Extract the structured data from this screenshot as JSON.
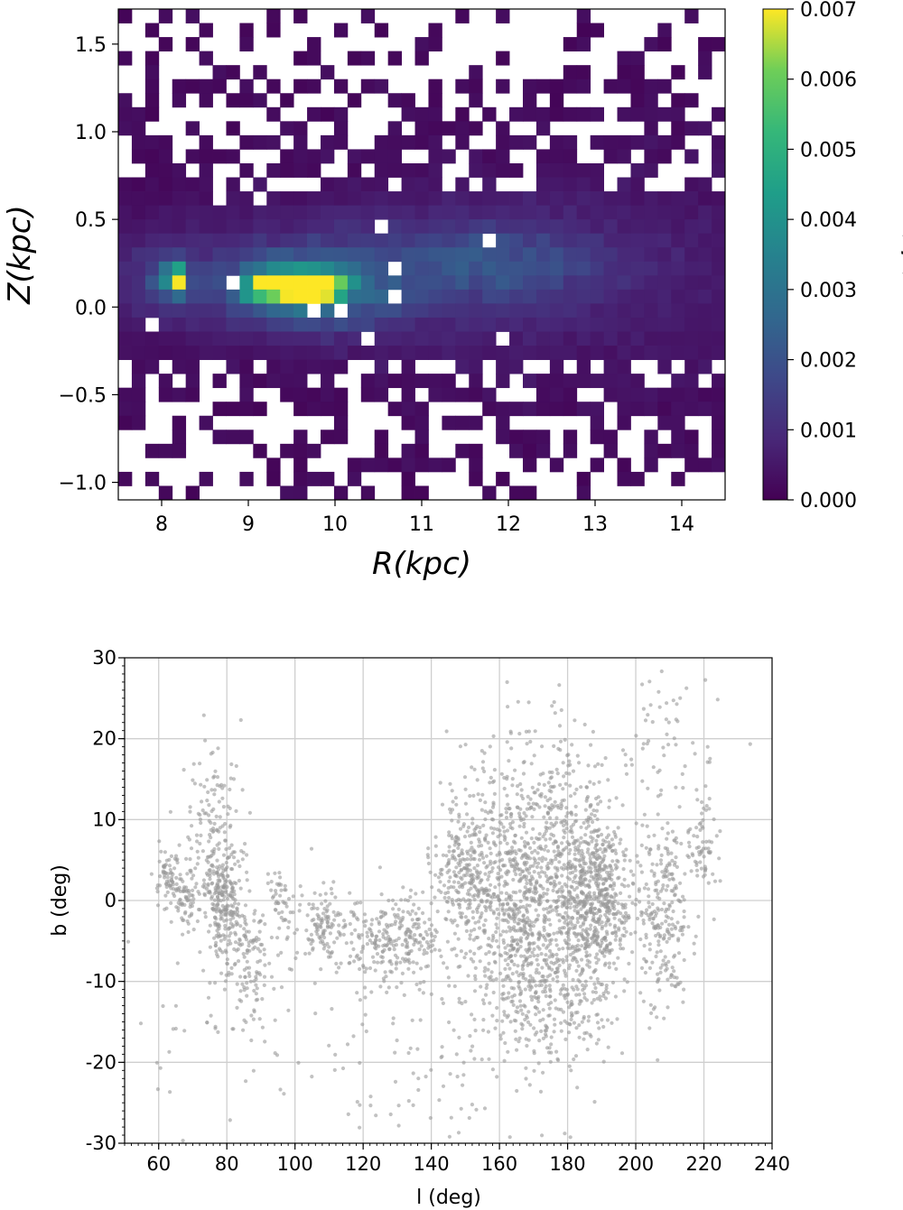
{
  "chart_data": [
    {
      "type": "heatmap",
      "title": "",
      "xlabel": "R(kpc)",
      "ylabel": "Z(kpc)",
      "xlim": [
        7.5,
        14.5
      ],
      "ylim": [
        -1.1,
        1.7
      ],
      "xticks": [
        8,
        9,
        10,
        11,
        12,
        13,
        14
      ],
      "xtick_labels": [
        "8",
        "9",
        "10",
        "11",
        "12",
        "13",
        "14"
      ],
      "yticks": [
        1.5,
        1.0,
        0.5,
        0.0,
        -0.5,
        -1.0
      ],
      "ytick_labels": [
        "1.5",
        "1.0",
        "0.5",
        "0.0",
        "−0.5",
        "−1.0"
      ],
      "grid": false,
      "colormap": "viridis",
      "colorbar": {
        "label": "< f >",
        "range": [
          0.0,
          0.007
        ],
        "ticks": [
          0.0,
          0.001,
          0.002,
          0.003,
          0.004,
          0.005,
          0.006,
          0.007
        ],
        "tick_labels": [
          "0.000",
          "0.001",
          "0.002",
          "0.003",
          "0.004",
          "0.005",
          "0.006",
          "0.007"
        ]
      },
      "bins": {
        "nx": 45,
        "ny": 35,
        "dR": 0.155,
        "dZ": 0.08
      },
      "features": [
        {
          "R": 8.15,
          "Z": 0.15,
          "value": 0.0068
        },
        {
          "R": 9.3,
          "Z": 0.12,
          "value": 0.007
        },
        {
          "R": 9.6,
          "Z": 0.1,
          "value": 0.007
        },
        {
          "R": 10.0,
          "Z": 0.15,
          "value": 0.0055
        },
        {
          "R": 10.3,
          "Z": 0.13,
          "value": 0.0052
        },
        {
          "R": 11.5,
          "Z": 0.25,
          "value": 0.0025
        },
        {
          "R": 12.5,
          "Z": 0.25,
          "value": 0.0018
        },
        {
          "R": 13.8,
          "Z": 0.2,
          "value": 0.001
        }
      ]
    },
    {
      "type": "scatter",
      "title": "",
      "xlabel": "l (deg)",
      "ylabel": "b (deg)",
      "xlim": [
        50,
        240
      ],
      "ylim": [
        -30,
        30
      ],
      "xticks": [
        60,
        80,
        100,
        120,
        140,
        160,
        180,
        200,
        220,
        240
      ],
      "xtick_labels": [
        "60",
        "80",
        "100",
        "120",
        "140",
        "160",
        "180",
        "200",
        "220",
        "240"
      ],
      "yticks": [
        30,
        20,
        10,
        0,
        -10,
        -20,
        -30
      ],
      "ytick_labels": [
        "30",
        "20",
        "10",
        "0",
        "-10",
        "-20",
        "-30"
      ],
      "grid": true,
      "marker_color": "#9a9a9a",
      "clusters": [
        {
          "l": 63,
          "b": 3,
          "sl": 2.0,
          "sb": 2.0,
          "n": 70
        },
        {
          "l": 68,
          "b": 0,
          "sl": 2.0,
          "sb": 2.0,
          "n": 60
        },
        {
          "l": 79,
          "b": 1,
          "sl": 3.0,
          "sb": 2.5,
          "n": 150
        },
        {
          "l": 76,
          "b": 8,
          "sl": 4.5,
          "sb": 6.0,
          "n": 160
        },
        {
          "l": 78,
          "b": -4,
          "sl": 3.0,
          "sb": 3.0,
          "n": 80
        },
        {
          "l": 87,
          "b": -8,
          "sl": 3.0,
          "sb": 4.0,
          "n": 110
        },
        {
          "l": 96,
          "b": 0,
          "sl": 2.0,
          "sb": 3.0,
          "n": 50
        },
        {
          "l": 108,
          "b": -3,
          "sl": 3.5,
          "sb": 2.5,
          "n": 110
        },
        {
          "l": 123,
          "b": -5,
          "sl": 6.0,
          "sb": 2.5,
          "n": 150
        },
        {
          "l": 135,
          "b": -5,
          "sl": 4.0,
          "sb": 3.0,
          "n": 120
        },
        {
          "l": 150,
          "b": 3,
          "sl": 5.0,
          "sb": 5.0,
          "n": 280
        },
        {
          "l": 165,
          "b": -1,
          "sl": 7.0,
          "sb": 6.0,
          "n": 520
        },
        {
          "l": 180,
          "b": 0,
          "sl": 6.0,
          "sb": 7.0,
          "n": 420
        },
        {
          "l": 190,
          "b": 3,
          "sl": 4.0,
          "sb": 4.0,
          "n": 250
        },
        {
          "l": 190,
          "b": -3,
          "sl": 5.0,
          "sb": 4.0,
          "n": 200
        },
        {
          "l": 208,
          "b": -1,
          "sl": 4.0,
          "sb": 6.0,
          "n": 260
        },
        {
          "l": 175,
          "b": -12,
          "sl": 10.0,
          "sb": 4.0,
          "n": 250
        },
        {
          "l": 170,
          "b": 12,
          "sl": 12.0,
          "sb": 6.0,
          "n": 260
        },
        {
          "l": 220,
          "b": 6,
          "sl": 2.0,
          "sb": 3.0,
          "n": 60
        },
        {
          "l": 150,
          "b": -20,
          "sl": 15.0,
          "sb": 6.0,
          "n": 90
        },
        {
          "l": 210,
          "b": 20,
          "sl": 10.0,
          "sb": 6.0,
          "n": 60
        },
        {
          "l": 100,
          "b": -15,
          "sl": 30.0,
          "sb": 8.0,
          "n": 80
        }
      ]
    }
  ]
}
